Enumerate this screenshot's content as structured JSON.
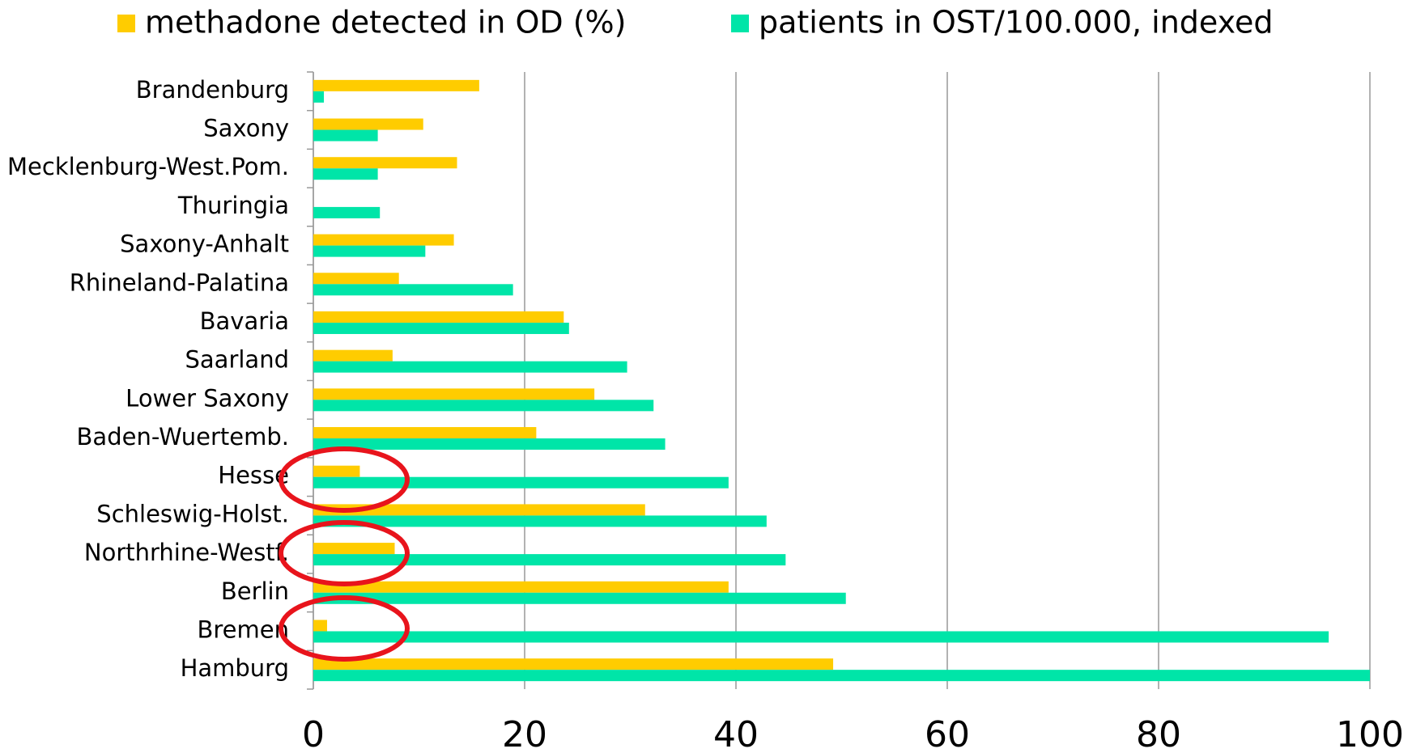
{
  "chart_data": {
    "type": "bar",
    "orientation": "horizontal",
    "categories": [
      "Brandenburg",
      "Saxony",
      "Mecklenburg-West.Pom.",
      "Thuringia",
      "Saxony-Anhalt",
      "Rhineland-Palatina",
      "Bavaria",
      "Saarland",
      "Lower Saxony",
      "Baden-Wuertemb.",
      "Hesse",
      "Schleswig-Holst.",
      "Northrhine-Westf.",
      "Berlin",
      "Bremen",
      "Hamburg"
    ],
    "series": [
      {
        "name": "methadone detected in OD (%)",
        "color": "#ffcc00",
        "values": [
          15.7,
          10.4,
          13.6,
          null,
          13.3,
          8.1,
          23.7,
          7.5,
          26.6,
          21.1,
          4.4,
          31.4,
          7.7,
          39.3,
          1.3,
          49.2
        ]
      },
      {
        "name": "patients in OST/100.000, indexed",
        "color": "#00e5a8",
        "values": [
          1.0,
          6.1,
          6.1,
          6.3,
          10.6,
          18.9,
          24.2,
          29.7,
          32.2,
          33.3,
          39.3,
          42.9,
          44.7,
          50.4,
          96.1,
          100
        ]
      }
    ],
    "xlim": [
      0,
      100
    ],
    "xticks": [
      0,
      20,
      40,
      60,
      80,
      100
    ],
    "grid": true,
    "legend": "top"
  }
}
